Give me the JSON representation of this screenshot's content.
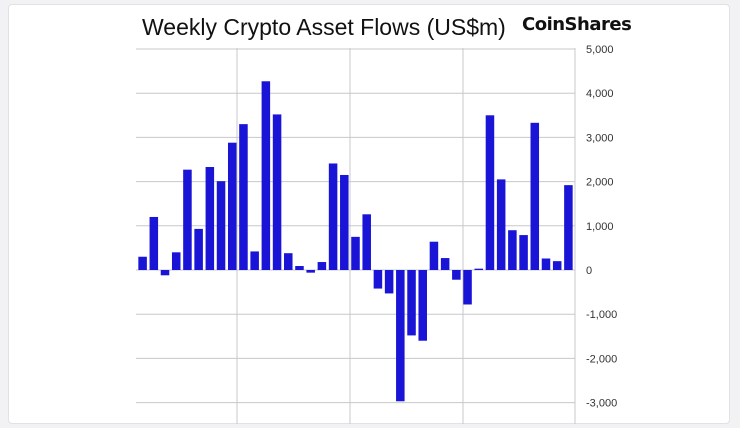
{
  "header": {
    "title": "Weekly Crypto Asset Flows (US$m)",
    "brand": "CoinShares"
  },
  "colors": {
    "bar": "#1a14d6",
    "grid": "#c8c8cc",
    "axis": "#888888"
  },
  "chart_data": {
    "type": "bar",
    "title": "Weekly Crypto Asset Flows (US$m)",
    "xlabel": "",
    "ylabel": "",
    "ylim": [
      -3000,
      5000
    ],
    "y_ticks": [
      5000,
      4000,
      3000,
      2000,
      1000,
      0,
      -1000,
      -2000,
      -3000
    ],
    "y_tick_labels": [
      "5,000",
      "4,000",
      "3,000",
      "2,000",
      "1,000",
      "0",
      "-1,000",
      "-2,000",
      "-3,000"
    ],
    "y_axis_position": "right",
    "grid": true,
    "legend": "none",
    "values": [
      300,
      1200,
      -120,
      400,
      2270,
      930,
      2330,
      2010,
      2880,
      3300,
      420,
      4270,
      3520,
      380,
      90,
      -60,
      180,
      2410,
      2150,
      750,
      1260,
      -420,
      -530,
      -2970,
      -1480,
      -1600,
      640,
      270,
      -220,
      -780,
      30,
      3500,
      2050,
      900,
      790,
      3330,
      260,
      200,
      1920
    ]
  }
}
